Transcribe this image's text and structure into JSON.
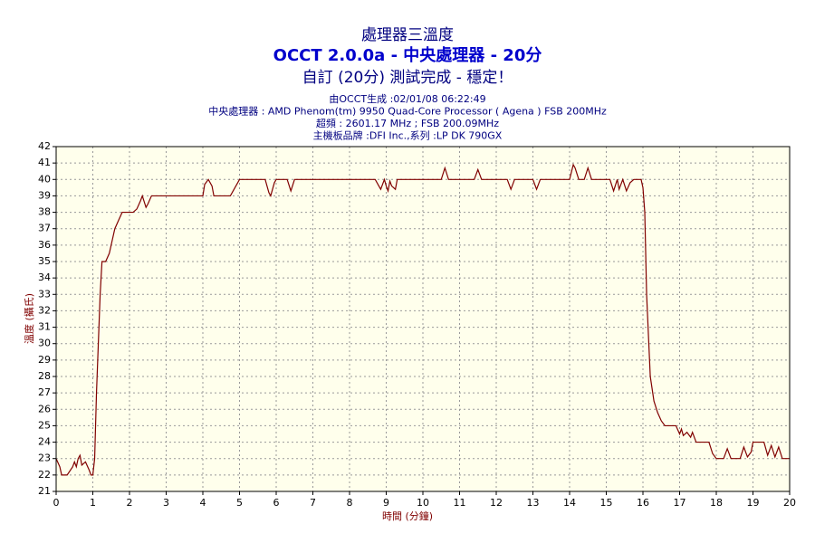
{
  "chart_data": {
    "type": "line",
    "title": "處理器三溫度",
    "subtitle": "OCCT 2.0.0a - 中央處理器 - 20分",
    "status": "自訂 (20分) 測試完成 - 穩定！",
    "info_lines": [
      "由OCCT生成 :02/01/08 06:22:49",
      "中央處理器 : AMD Phenom(tm) 9950 Quad-Core Processor ( Agena ) FSB 200MHz",
      "超頻 : 2601.17 MHz ; FSB 200.09MHz",
      "主機板品牌 :DFI Inc.,系列 :LP DK 790GX"
    ],
    "xlabel": "時間 (分鐘)",
    "ylabel": "溫度 (攝氏)",
    "xlim": [
      0,
      20
    ],
    "ylim": [
      21,
      42
    ],
    "xticks": [
      0,
      1,
      2,
      3,
      4,
      5,
      6,
      7,
      8,
      9,
      10,
      11,
      12,
      13,
      14,
      15,
      16,
      17,
      18,
      19,
      20
    ],
    "yticks": [
      21,
      22,
      23,
      24,
      25,
      26,
      27,
      28,
      29,
      30,
      31,
      32,
      33,
      34,
      35,
      36,
      37,
      38,
      39,
      40,
      41,
      42
    ],
    "grid": true,
    "x": [
      0,
      0.1,
      0.15,
      0.3,
      0.45,
      0.5,
      0.55,
      0.6,
      0.65,
      0.7,
      0.8,
      0.9,
      0.95,
      1.0,
      1.05,
      1.1,
      1.2,
      1.25,
      1.35,
      1.45,
      1.5,
      1.6,
      1.7,
      1.8,
      2.1,
      2.2,
      2.3,
      2.35,
      2.45,
      2.5,
      2.6,
      4.0,
      4.05,
      4.15,
      4.25,
      4.3,
      4.75,
      4.9,
      5.0,
      5.7,
      5.8,
      5.85,
      5.95,
      6.0,
      6.3,
      6.4,
      6.5,
      8.7,
      8.8,
      8.85,
      8.95,
      9.0,
      9.05,
      9.1,
      9.15,
      9.25,
      9.3,
      10.5,
      10.6,
      10.7,
      11.4,
      11.5,
      11.6,
      12.3,
      12.4,
      12.5,
      13.0,
      13.1,
      13.2,
      14.0,
      14.1,
      14.15,
      14.25,
      14.4,
      14.5,
      14.6,
      15.1,
      15.2,
      15.3,
      15.35,
      15.45,
      15.55,
      15.65,
      15.75,
      15.95,
      16.0,
      16.05,
      16.1,
      16.2,
      16.3,
      16.4,
      16.5,
      16.6,
      16.9,
      17.0,
      17.05,
      17.1,
      17.2,
      17.3,
      17.35,
      17.45,
      17.8,
      17.9,
      18.0,
      18.2,
      18.3,
      18.4,
      18.65,
      18.75,
      18.85,
      18.95,
      19.0,
      19.3,
      19.4,
      19.5,
      19.6,
      19.7,
      19.8,
      20
    ],
    "series": [
      {
        "name": "處理器三",
        "color": "#800000",
        "values": [
          23,
          22.5,
          22,
          22,
          22.5,
          22.8,
          22.5,
          23,
          23.2,
          22.6,
          22.8,
          22.3,
          22,
          22,
          23,
          27,
          33,
          35,
          35,
          35.5,
          36,
          37,
          37.5,
          38,
          38,
          38.2,
          38.7,
          39,
          38.3,
          38.5,
          39,
          39,
          39.7,
          40,
          39.6,
          39,
          39,
          39.6,
          40,
          40,
          39.2,
          39,
          39.8,
          40,
          40,
          39.3,
          40,
          40,
          39.6,
          39.4,
          40,
          39.6,
          39.3,
          39.9,
          39.6,
          39.4,
          40,
          40,
          40.7,
          40,
          40,
          40.6,
          40,
          40,
          39.4,
          40,
          40,
          39.4,
          40,
          40,
          40.9,
          40.7,
          40,
          40,
          40.7,
          40,
          40,
          39.3,
          40,
          39.4,
          40,
          39.3,
          39.8,
          40,
          40,
          39.5,
          38,
          33,
          28,
          26.5,
          25.8,
          25.3,
          25,
          25,
          24.5,
          24.8,
          24.4,
          24.6,
          24.3,
          24.6,
          24,
          24,
          23.3,
          23,
          23,
          23.6,
          23,
          23,
          23.7,
          23.1,
          23.4,
          24,
          24,
          23.2,
          23.8,
          23.1,
          23.7,
          23,
          23
        ]
      }
    ]
  }
}
